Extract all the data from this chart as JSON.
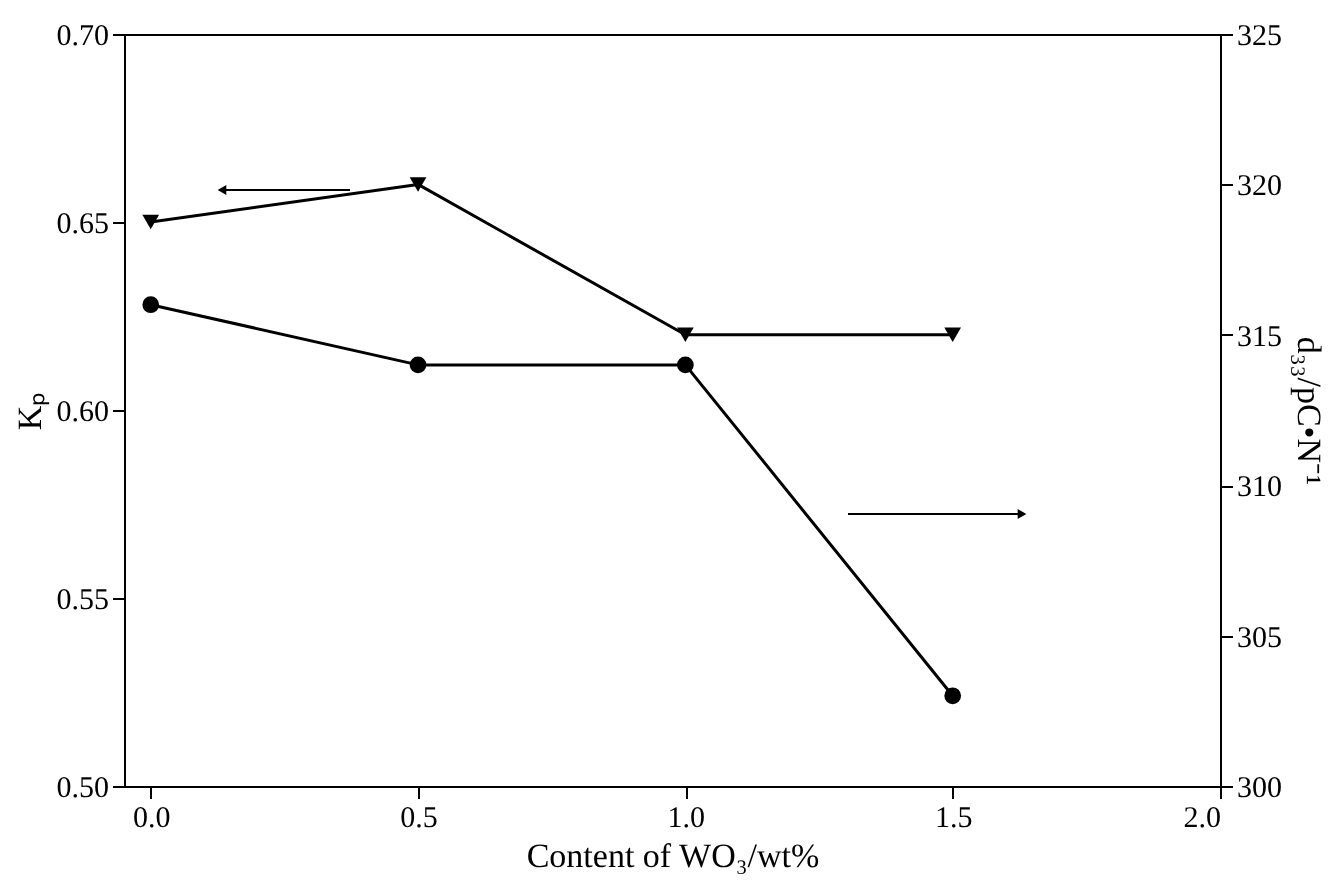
{
  "chart_data": {
    "type": "line",
    "xlabel": "Content of WO₃/wt%",
    "ylabel": "Kₚ",
    "y2label": "d₃₃/pC•N⁻¹",
    "x": [
      0.0,
      0.5,
      1.0,
      1.5
    ],
    "xlim": [
      -0.05,
      2.0
    ],
    "xticks": [
      {
        "value": 0,
        "label": "0.0"
      },
      0.5,
      {
        "value": 1,
        "label": "1.0"
      },
      1.5,
      {
        "value": 2,
        "label": "2.0"
      }
    ],
    "ylim": [
      0.5,
      0.7
    ],
    "yticks": [
      {
        "value": 0.5,
        "label": "0.50"
      },
      0.55,
      {
        "value": 0.6,
        "label": "0.60"
      },
      0.65,
      {
        "value": 0.7,
        "label": "0.70"
      }
    ],
    "y2lim": [
      300,
      325
    ],
    "y2ticks": [
      300,
      305,
      310,
      315,
      320,
      325
    ],
    "series": [
      {
        "color": "#000000",
        "marker": "triangle",
        "values": [
          0.65,
          0.66,
          0.62,
          0.62
        ]
      },
      {
        "color": "#000000",
        "marker": "circle",
        "axis": "y2",
        "values": [
          316,
          314,
          314,
          303
        ]
      }
    ],
    "grid": false,
    "line_style": "solid"
  }
}
